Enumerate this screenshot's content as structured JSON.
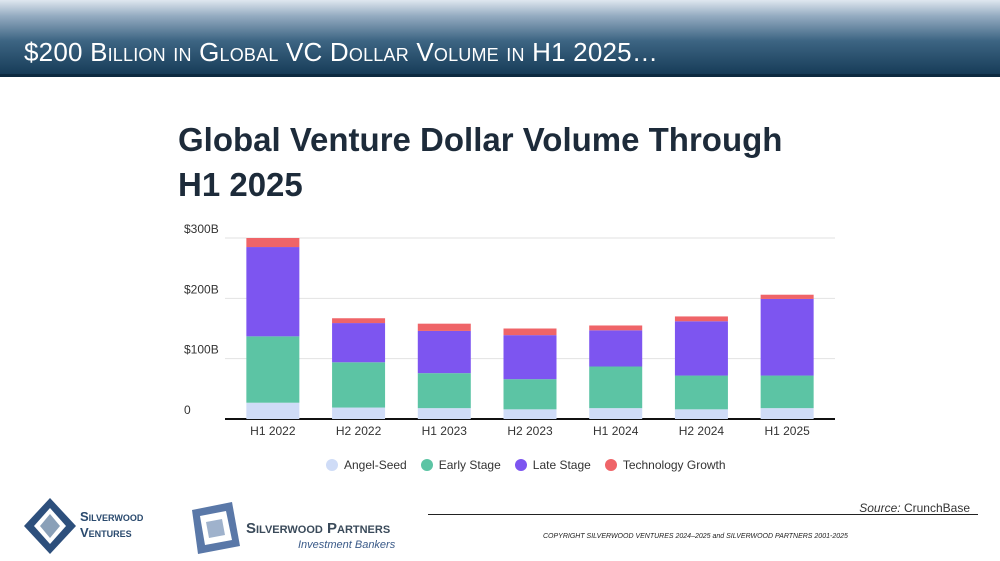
{
  "slide": {
    "header_title": "$200 Billion in Global VC Dollar Volume in H1 2025…",
    "source_label": "Source:",
    "source_value": "CrunchBase",
    "copyright": "COPYRIGHT SILVERWOOD VENTURES 2024–2025 and SILVERWOOD PARTNERS 2001-2025"
  },
  "logos": {
    "silverwood_ventures": {
      "line1": "Silverwood",
      "line2": "Ventures"
    },
    "silverwood_partners": {
      "name": "Silverwood Partners",
      "tagline": "Investment Bankers"
    }
  },
  "colors": {
    "header_dark": "#173c58",
    "angel_seed": "#cfdcf7",
    "early_stage": "#5cc4a4",
    "late_stage": "#7d55f0",
    "technology_growth": "#ef6468"
  },
  "chart_data": {
    "type": "bar",
    "stacked": true,
    "title": "Global Venture Dollar Volume Through H1 2025",
    "title_line1": "Global Venture Dollar Volume Through",
    "title_line2": "H1 2025",
    "xlabel": "",
    "ylabel": "",
    "ylim": [
      0,
      300
    ],
    "y_ticks": [
      0,
      100,
      200,
      300
    ],
    "y_tick_labels": [
      "0",
      "$100B",
      "$200B",
      "$300B"
    ],
    "grid": true,
    "legend_position": "bottom",
    "categories": [
      "H1 2022",
      "H2 2022",
      "H1 2023",
      "H2 2023",
      "H1 2024",
      "H2 2024",
      "H1 2025"
    ],
    "series": [
      {
        "name": "Angel-Seed",
        "color": "#cfdcf7",
        "values": [
          27,
          19,
          18,
          16,
          18,
          16,
          18
        ]
      },
      {
        "name": "Early Stage",
        "color": "#5cc4a4",
        "values": [
          110,
          75,
          58,
          50,
          69,
          56,
          54
        ]
      },
      {
        "name": "Late Stage",
        "color": "#7d55f0",
        "values": [
          148,
          65,
          70,
          73,
          60,
          90,
          127
        ]
      },
      {
        "name": "Technology Growth",
        "color": "#ef6468",
        "values": [
          15,
          8,
          12,
          11,
          8,
          8,
          7
        ]
      }
    ]
  }
}
